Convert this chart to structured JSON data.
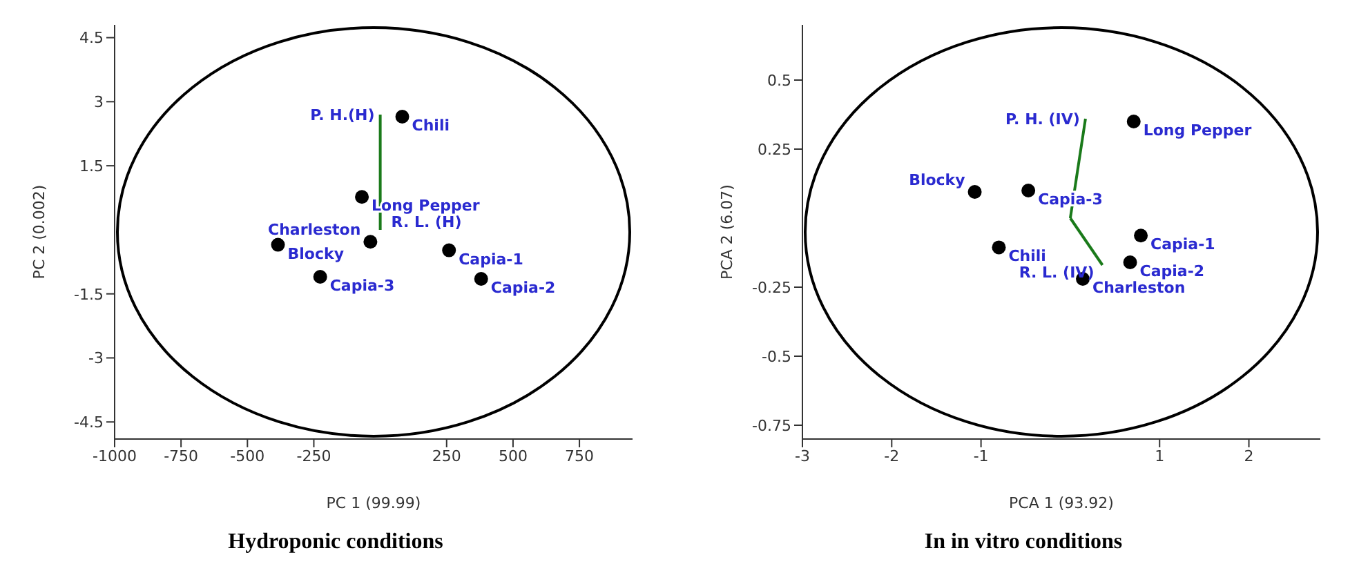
{
  "chart_data": [
    {
      "type": "scatter",
      "title": "Hydroponic conditions",
      "xlabel": "PC 1 (99.99)",
      "ylabel": "PC 2 (0.002)",
      "xlim": [
        -1000,
        950
      ],
      "ylim": [
        -4.9,
        4.8
      ],
      "xticks": [
        -1000,
        -750,
        -500,
        -250,
        250,
        500,
        750
      ],
      "yticks": [
        -4.5,
        -3.0,
        -1.5,
        1.5,
        3.0,
        4.5
      ],
      "marker": "circle",
      "grid": false,
      "series": [
        {
          "name": "Chili",
          "color": "#000000",
          "x": [
            83
          ],
          "values": [
            2.65
          ]
        },
        {
          "name": "Long Pepper",
          "color": "#000000",
          "x": [
            -69
          ],
          "values": [
            0.77
          ]
        },
        {
          "name": "Blocky",
          "color": "#000000",
          "x": [
            -385
          ],
          "values": [
            -0.35
          ]
        },
        {
          "name": "Charleston",
          "color": "#000000",
          "x": [
            -37
          ],
          "values": [
            -0.28
          ]
        },
        {
          "name": "Capia-1",
          "color": "#000000",
          "x": [
            259
          ],
          "values": [
            -0.48
          ]
        },
        {
          "name": "Capia-2",
          "color": "#000000",
          "x": [
            380
          ],
          "values": [
            -1.15
          ]
        },
        {
          "name": "Capia-3",
          "color": "#000000",
          "x": [
            -226
          ],
          "values": [
            -1.1
          ]
        },
        {
          "name": "P. H.(H)",
          "type": "line",
          "marker": "none",
          "color": "#1a7a1a",
          "x": [
            0,
            0
          ],
          "values": [
            0,
            2.7
          ]
        }
      ],
      "annotations": [
        {
          "text": "R. L. (H)",
          "x": 0,
          "y": 0
        }
      ]
    },
    {
      "type": "scatter",
      "title": "In in vitro conditions",
      "xlabel": "PCA 1 (93.92)",
      "ylabel": "PCA 2 (6.07)",
      "xlim": [
        -3,
        2.8
      ],
      "ylim": [
        -0.8,
        0.7
      ],
      "xticks": [
        -3,
        -2,
        -1,
        1,
        2
      ],
      "yticks": [
        -0.75,
        -0.5,
        -0.25,
        0.25,
        0.5
      ],
      "marker": "circle",
      "grid": false,
      "series": [
        {
          "name": "Long Pepper",
          "color": "#000000",
          "x": [
            0.71
          ],
          "values": [
            0.35
          ]
        },
        {
          "name": "Blocky",
          "color": "#000000",
          "x": [
            -1.07
          ],
          "values": [
            0.095
          ]
        },
        {
          "name": "Capia-3",
          "color": "#000000",
          "x": [
            -0.47
          ],
          "values": [
            0.1
          ]
        },
        {
          "name": "Chili",
          "color": "#000000",
          "x": [
            -0.8
          ],
          "values": [
            -0.106
          ]
        },
        {
          "name": "Capia-1",
          "color": "#000000",
          "x": [
            0.79
          ],
          "values": [
            -0.063
          ]
        },
        {
          "name": "Capia-2",
          "color": "#000000",
          "x": [
            0.67
          ],
          "values": [
            -0.16
          ]
        },
        {
          "name": "Charleston",
          "color": "#000000",
          "x": [
            0.14
          ],
          "values": [
            -0.22
          ]
        },
        {
          "name": "P. H. (IV)",
          "type": "line",
          "marker": "none",
          "color": "#1a7a1a",
          "x": [
            0,
            0.17
          ],
          "values": [
            0,
            0.36
          ]
        },
        {
          "name": "R. L. (IV)",
          "type": "line",
          "marker": "none",
          "color": "#1a7a1a",
          "x": [
            0,
            0.36
          ],
          "values": [
            0,
            -0.17
          ]
        }
      ]
    }
  ]
}
